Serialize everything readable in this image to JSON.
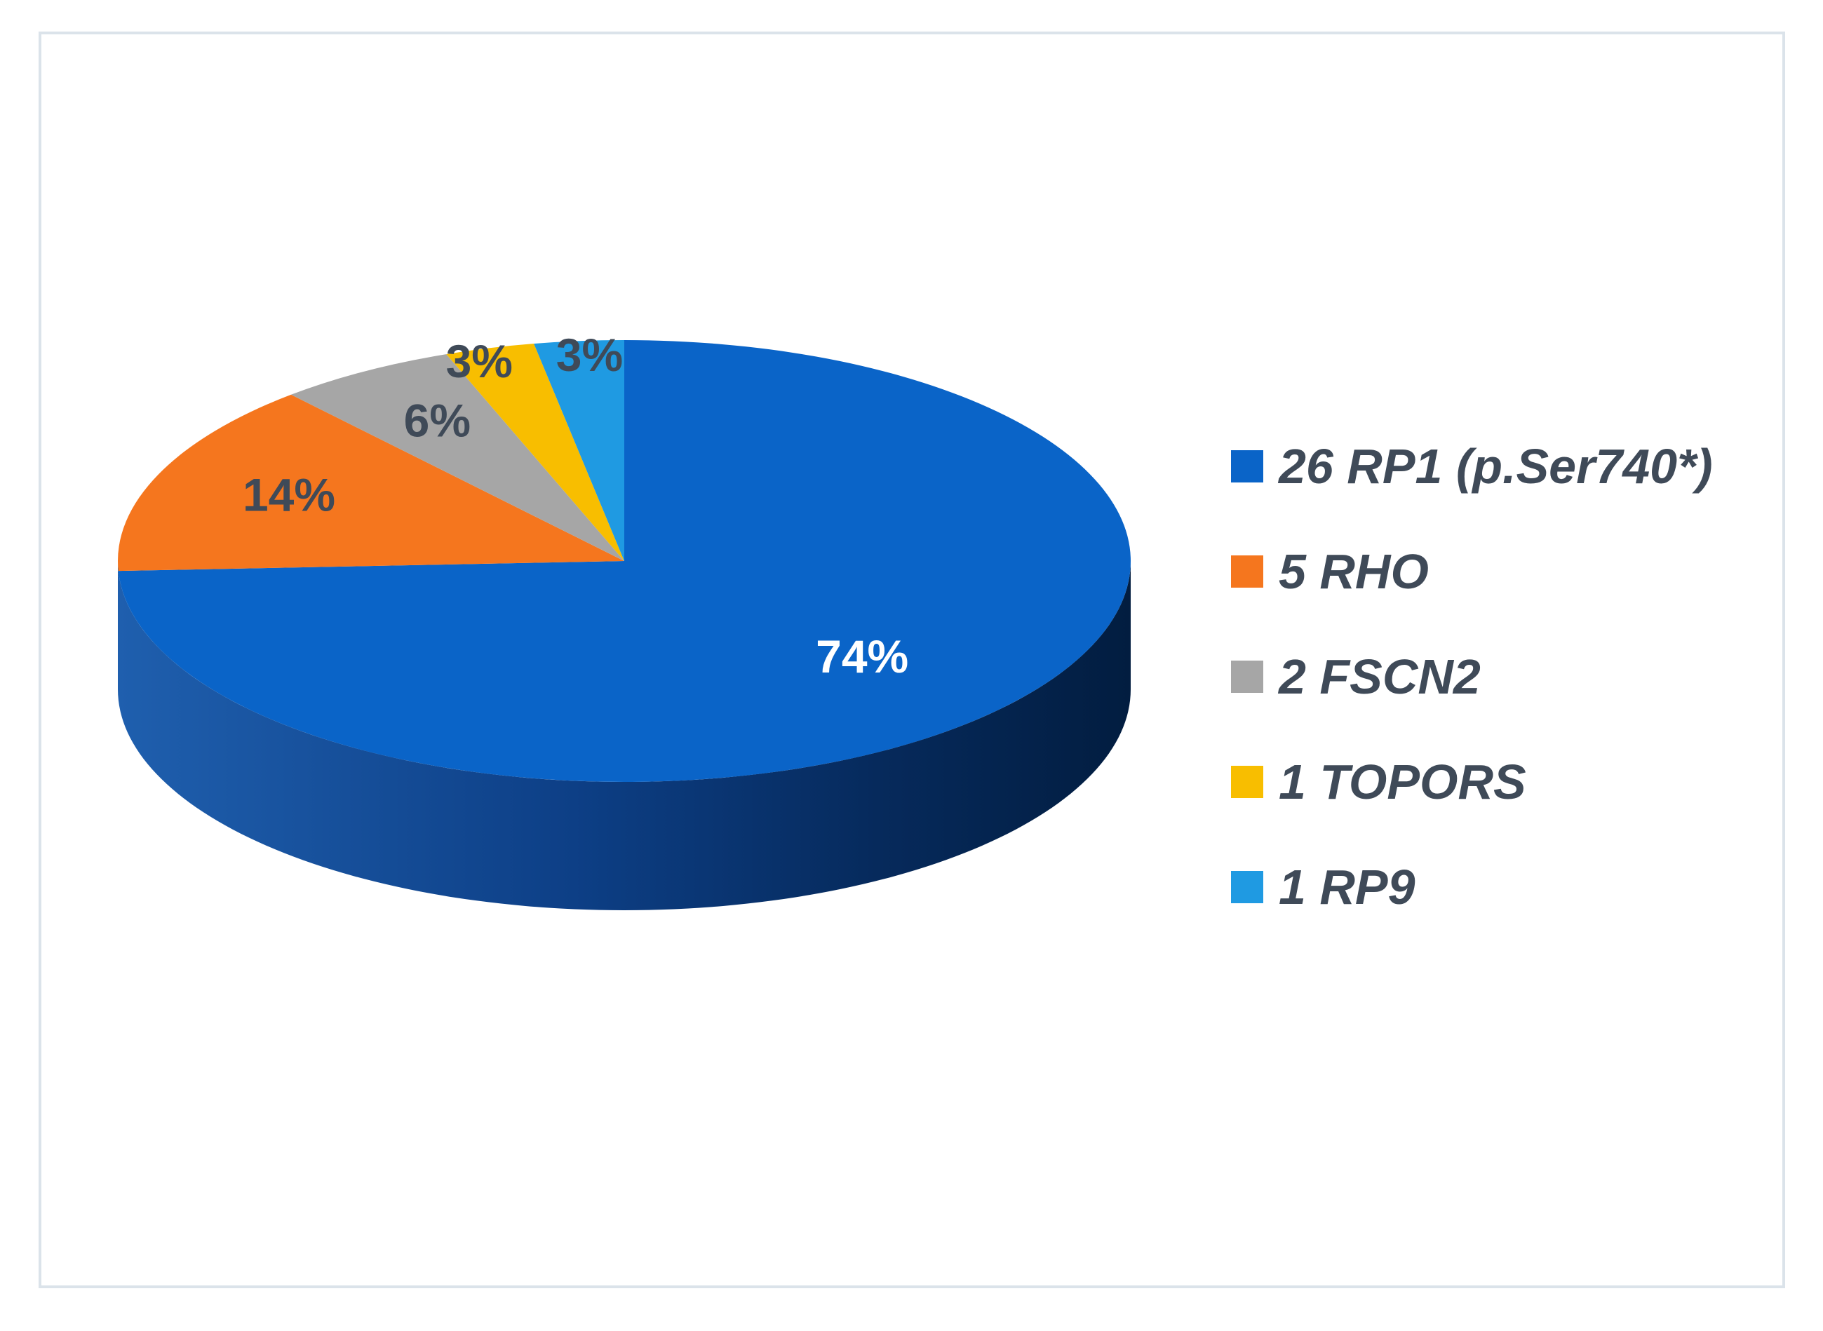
{
  "chart_data": {
    "type": "pie",
    "style": "3d",
    "slices": [
      {
        "label": "26 RP1 (p.Ser740*)",
        "value": 26,
        "percent_label": "74%",
        "color": "#0a64c8",
        "label_color": "#ffffff"
      },
      {
        "label": "5 RHO",
        "value": 5,
        "percent_label": "14%",
        "color": "#f5761e",
        "label_color": "#3f4a58"
      },
      {
        "label": "2 FSCN2",
        "value": 2,
        "percent_label": "6%",
        "color": "#a6a6a6",
        "label_color": "#3f4a58"
      },
      {
        "label": "1 TOPORS",
        "value": 1,
        "percent_label": "3%",
        "color": "#f8be00",
        "label_color": "#3f4a58"
      },
      {
        "label": "1 RP9",
        "value": 1,
        "percent_label": "3%",
        "color": "#1f9ae2",
        "label_color": "#3f4a58"
      }
    ],
    "legend_position": "right",
    "title": ""
  }
}
